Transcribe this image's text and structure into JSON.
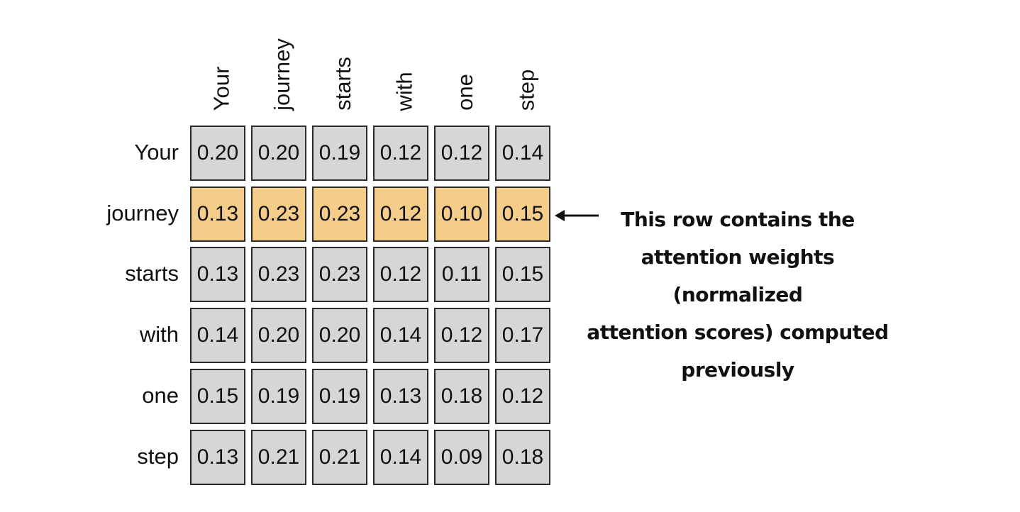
{
  "matrix": {
    "col_labels": [
      "Your",
      "journey",
      "starts",
      "with",
      "one",
      "step"
    ],
    "row_labels": [
      "Your",
      "journey",
      "starts",
      "with",
      "one",
      "step"
    ],
    "values": [
      [
        "0.20",
        "0.20",
        "0.19",
        "0.12",
        "0.12",
        "0.14"
      ],
      [
        "0.13",
        "0.23",
        "0.23",
        "0.12",
        "0.10",
        "0.15"
      ],
      [
        "0.13",
        "0.23",
        "0.23",
        "0.12",
        "0.11",
        "0.15"
      ],
      [
        "0.14",
        "0.20",
        "0.20",
        "0.14",
        "0.12",
        "0.17"
      ],
      [
        "0.15",
        "0.19",
        "0.19",
        "0.13",
        "0.18",
        "0.12"
      ],
      [
        "0.13",
        "0.21",
        "0.21",
        "0.14",
        "0.09",
        "0.18"
      ]
    ],
    "highlight_row": 1,
    "cell_color": "#d6d6d6",
    "highlight_color": "#f3cd89",
    "border_color": "#2b2b2b"
  },
  "callout": {
    "text": "This row contains the attention weights (normalized attention scores) computed previously",
    "lines": [
      "This row contains the",
      "attention weights (normalized",
      "attention scores) computed",
      "previously"
    ]
  }
}
